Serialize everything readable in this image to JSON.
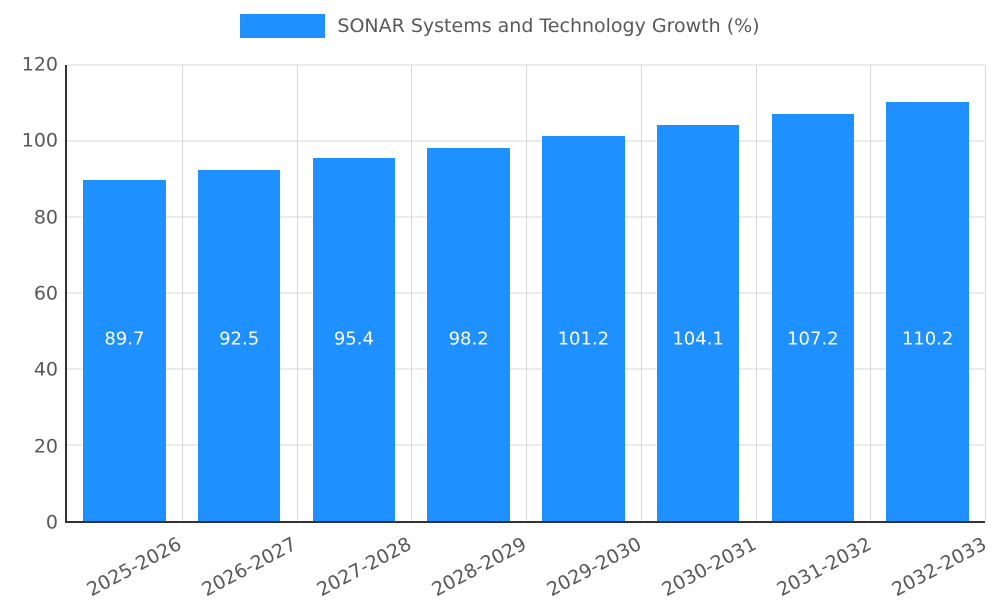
{
  "legend": {
    "label": "SONAR Systems and Technology Growth (%)",
    "swatch_color": "#1E90FF"
  },
  "chart_data": {
    "type": "bar",
    "title": "SONAR Systems and Technology Growth (%)",
    "categories": [
      "2025-2026",
      "2026-2027",
      "2027-2028",
      "2028-2029",
      "2029-2030",
      "2030-2031",
      "2031-2032",
      "2032-2033"
    ],
    "values": [
      89.7,
      92.5,
      95.4,
      98.2,
      101.2,
      104.1,
      107.2,
      110.2
    ],
    "value_labels": [
      "89.7",
      "92.5",
      "95.4",
      "98.2",
      "101.2",
      "104.1",
      "107.2",
      "110.2"
    ],
    "xlabel": "",
    "ylabel": "",
    "ylim": [
      0,
      120
    ],
    "yticks": [
      0,
      20,
      40,
      60,
      80,
      100,
      120
    ],
    "bar_color": "#1E90FF",
    "value_label_color": "#ffffff",
    "tick_label_color": "#595959",
    "grid": true,
    "legend_position": "top",
    "value_label_height": 48
  }
}
